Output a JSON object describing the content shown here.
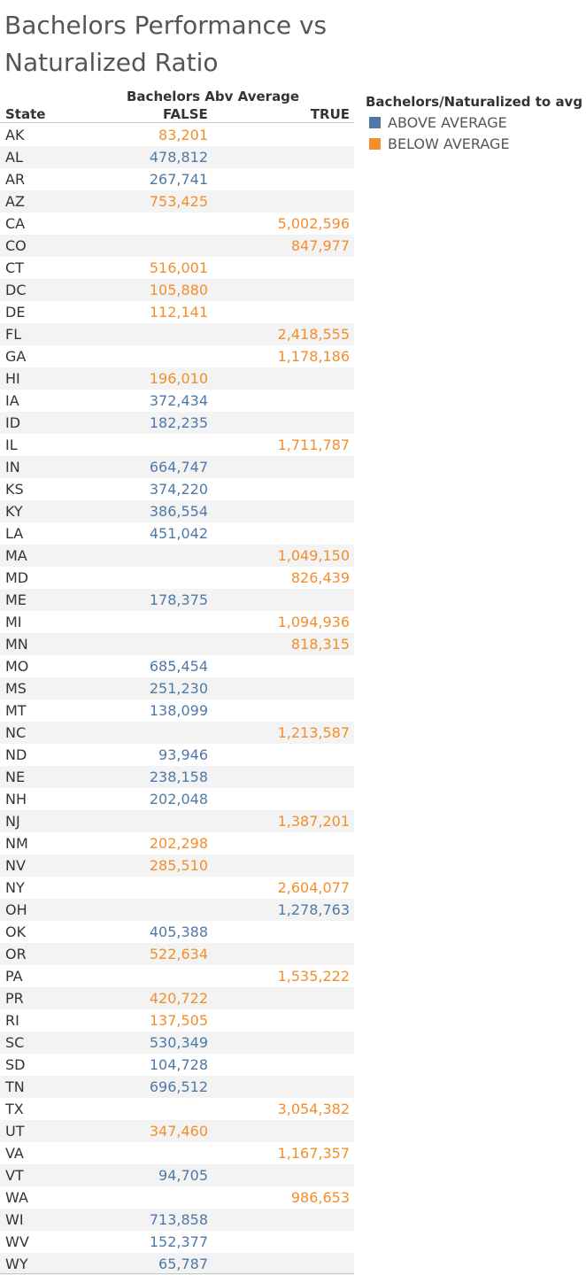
{
  "title": "Bachelors Performance vs Naturalized Ratio",
  "chart_data": {
    "type": "table",
    "column_group_label": "Bachelors Abv Average",
    "row_header": "State",
    "columns": [
      "FALSE",
      "TRUE"
    ],
    "color_legend": {
      "title": "Bachelors/Naturalized to avg",
      "items": [
        {
          "label": "ABOVE AVERAGE",
          "color": "#4e79a7"
        },
        {
          "label": "BELOW AVERAGE",
          "color": "#f28e2b"
        }
      ]
    },
    "rows": [
      {
        "state": "AK",
        "col": "FALSE",
        "value": "83,201",
        "color": "BELOW AVERAGE"
      },
      {
        "state": "AL",
        "col": "FALSE",
        "value": "478,812",
        "color": "ABOVE AVERAGE"
      },
      {
        "state": "AR",
        "col": "FALSE",
        "value": "267,741",
        "color": "ABOVE AVERAGE"
      },
      {
        "state": "AZ",
        "col": "FALSE",
        "value": "753,425",
        "color": "BELOW AVERAGE"
      },
      {
        "state": "CA",
        "col": "TRUE",
        "value": "5,002,596",
        "color": "BELOW AVERAGE"
      },
      {
        "state": "CO",
        "col": "TRUE",
        "value": "847,977",
        "color": "BELOW AVERAGE"
      },
      {
        "state": "CT",
        "col": "FALSE",
        "value": "516,001",
        "color": "BELOW AVERAGE"
      },
      {
        "state": "DC",
        "col": "FALSE",
        "value": "105,880",
        "color": "BELOW AVERAGE"
      },
      {
        "state": "DE",
        "col": "FALSE",
        "value": "112,141",
        "color": "BELOW AVERAGE"
      },
      {
        "state": "FL",
        "col": "TRUE",
        "value": "2,418,555",
        "color": "BELOW AVERAGE"
      },
      {
        "state": "GA",
        "col": "TRUE",
        "value": "1,178,186",
        "color": "BELOW AVERAGE"
      },
      {
        "state": "HI",
        "col": "FALSE",
        "value": "196,010",
        "color": "BELOW AVERAGE"
      },
      {
        "state": "IA",
        "col": "FALSE",
        "value": "372,434",
        "color": "ABOVE AVERAGE"
      },
      {
        "state": "ID",
        "col": "FALSE",
        "value": "182,235",
        "color": "ABOVE AVERAGE"
      },
      {
        "state": "IL",
        "col": "TRUE",
        "value": "1,711,787",
        "color": "BELOW AVERAGE"
      },
      {
        "state": "IN",
        "col": "FALSE",
        "value": "664,747",
        "color": "ABOVE AVERAGE"
      },
      {
        "state": "KS",
        "col": "FALSE",
        "value": "374,220",
        "color": "ABOVE AVERAGE"
      },
      {
        "state": "KY",
        "col": "FALSE",
        "value": "386,554",
        "color": "ABOVE AVERAGE"
      },
      {
        "state": "LA",
        "col": "FALSE",
        "value": "451,042",
        "color": "ABOVE AVERAGE"
      },
      {
        "state": "MA",
        "col": "TRUE",
        "value": "1,049,150",
        "color": "BELOW AVERAGE"
      },
      {
        "state": "MD",
        "col": "TRUE",
        "value": "826,439",
        "color": "BELOW AVERAGE"
      },
      {
        "state": "ME",
        "col": "FALSE",
        "value": "178,375",
        "color": "ABOVE AVERAGE"
      },
      {
        "state": "MI",
        "col": "TRUE",
        "value": "1,094,936",
        "color": "BELOW AVERAGE"
      },
      {
        "state": "MN",
        "col": "TRUE",
        "value": "818,315",
        "color": "BELOW AVERAGE"
      },
      {
        "state": "MO",
        "col": "FALSE",
        "value": "685,454",
        "color": "ABOVE AVERAGE"
      },
      {
        "state": "MS",
        "col": "FALSE",
        "value": "251,230",
        "color": "ABOVE AVERAGE"
      },
      {
        "state": "MT",
        "col": "FALSE",
        "value": "138,099",
        "color": "ABOVE AVERAGE"
      },
      {
        "state": "NC",
        "col": "TRUE",
        "value": "1,213,587",
        "color": "BELOW AVERAGE"
      },
      {
        "state": "ND",
        "col": "FALSE",
        "value": "93,946",
        "color": "ABOVE AVERAGE"
      },
      {
        "state": "NE",
        "col": "FALSE",
        "value": "238,158",
        "color": "ABOVE AVERAGE"
      },
      {
        "state": "NH",
        "col": "FALSE",
        "value": "202,048",
        "color": "ABOVE AVERAGE"
      },
      {
        "state": "NJ",
        "col": "TRUE",
        "value": "1,387,201",
        "color": "BELOW AVERAGE"
      },
      {
        "state": "NM",
        "col": "FALSE",
        "value": "202,298",
        "color": "BELOW AVERAGE"
      },
      {
        "state": "NV",
        "col": "FALSE",
        "value": "285,510",
        "color": "BELOW AVERAGE"
      },
      {
        "state": "NY",
        "col": "TRUE",
        "value": "2,604,077",
        "color": "BELOW AVERAGE"
      },
      {
        "state": "OH",
        "col": "TRUE",
        "value": "1,278,763",
        "color": "ABOVE AVERAGE"
      },
      {
        "state": "OK",
        "col": "FALSE",
        "value": "405,388",
        "color": "ABOVE AVERAGE"
      },
      {
        "state": "OR",
        "col": "FALSE",
        "value": "522,634",
        "color": "BELOW AVERAGE"
      },
      {
        "state": "PA",
        "col": "TRUE",
        "value": "1,535,222",
        "color": "BELOW AVERAGE"
      },
      {
        "state": "PR",
        "col": "FALSE",
        "value": "420,722",
        "color": "BELOW AVERAGE"
      },
      {
        "state": "RI",
        "col": "FALSE",
        "value": "137,505",
        "color": "BELOW AVERAGE"
      },
      {
        "state": "SC",
        "col": "FALSE",
        "value": "530,349",
        "color": "ABOVE AVERAGE"
      },
      {
        "state": "SD",
        "col": "FALSE",
        "value": "104,728",
        "color": "ABOVE AVERAGE"
      },
      {
        "state": "TN",
        "col": "FALSE",
        "value": "696,512",
        "color": "ABOVE AVERAGE"
      },
      {
        "state": "TX",
        "col": "TRUE",
        "value": "3,054,382",
        "color": "BELOW AVERAGE"
      },
      {
        "state": "UT",
        "col": "FALSE",
        "value": "347,460",
        "color": "BELOW AVERAGE"
      },
      {
        "state": "VA",
        "col": "TRUE",
        "value": "1,167,357",
        "color": "BELOW AVERAGE"
      },
      {
        "state": "VT",
        "col": "FALSE",
        "value": "94,705",
        "color": "ABOVE AVERAGE"
      },
      {
        "state": "WA",
        "col": "TRUE",
        "value": "986,653",
        "color": "BELOW AVERAGE"
      },
      {
        "state": "WI",
        "col": "FALSE",
        "value": "713,858",
        "color": "ABOVE AVERAGE"
      },
      {
        "state": "WV",
        "col": "FALSE",
        "value": "152,377",
        "color": "ABOVE AVERAGE"
      },
      {
        "state": "WY",
        "col": "FALSE",
        "value": "65,787",
        "color": "ABOVE AVERAGE"
      }
    ]
  }
}
